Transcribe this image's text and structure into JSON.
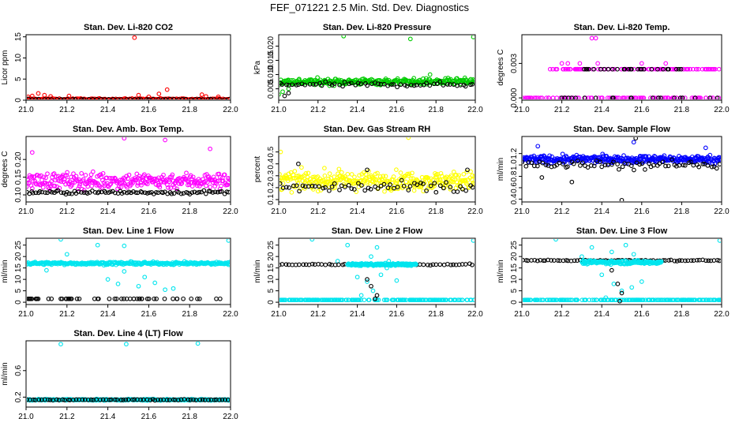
{
  "title": "FEF_071221  2.5 Min. Std. Dev. Diagnostics",
  "chart_data": [
    {
      "type": "scatter",
      "title": "Stan. Dev. Li-820 CO2",
      "ylabel": "Licor ppm",
      "xlabel": "",
      "xlim": [
        21.0,
        22.0
      ],
      "ylim": [
        0,
        15.5
      ],
      "xticks": [
        "21.0",
        "21.2",
        "21.4",
        "21.6",
        "21.8",
        "22.0"
      ],
      "yticks": [
        {
          "v": 0,
          "t": "0"
        },
        {
          "v": 5,
          "t": "5"
        },
        {
          "v": 10,
          "t": "10"
        },
        {
          "v": 15,
          "t": "15"
        }
      ],
      "series": [
        {
          "color": "#ff0000",
          "base": 0.25,
          "spread": 0.3,
          "n": 180,
          "outliers": [
            [
              21.01,
              0.8
            ],
            [
              21.03,
              1.0
            ],
            [
              21.06,
              1.6
            ],
            [
              21.09,
              1.2
            ],
            [
              21.12,
              0.9
            ],
            [
              21.21,
              1.0
            ],
            [
              21.53,
              14.8
            ],
            [
              21.55,
              1.2
            ],
            [
              21.6,
              0.8
            ],
            [
              21.65,
              1.5
            ],
            [
              21.69,
              2.5
            ],
            [
              21.86,
              1.3
            ],
            [
              21.88,
              0.9
            ],
            [
              21.94,
              0.8
            ]
          ]
        },
        {
          "color": "#000000",
          "base": 0.2,
          "spread": 0.15,
          "n": 50,
          "outliers": []
        }
      ]
    },
    {
      "type": "scatter",
      "title": "Stan. Dev. Li-820 Pressure",
      "ylabel": "kPa",
      "xlabel": "",
      "xlim": [
        21.0,
        22.0
      ],
      "ylim": [
        0.001,
        0.024
      ],
      "xticks": [
        "21.0",
        "21.2",
        "21.4",
        "21.6",
        "21.8",
        "22.0"
      ],
      "yticks": [
        {
          "v": 0.005,
          "t": "0.005"
        },
        {
          "v": 0.01,
          "t": "0.010"
        },
        {
          "v": 0.015,
          "t": "0.015"
        },
        {
          "v": 0.02,
          "t": "0.020"
        }
      ],
      "series": [
        {
          "color": "#00cc00",
          "base": 0.0075,
          "spread": 0.0022,
          "n": 300,
          "outliers": [
            [
              21.0,
              0.003
            ],
            [
              21.02,
              0.004
            ],
            [
              21.05,
              0.005
            ],
            [
              21.33,
              0.0235
            ],
            [
              21.67,
              0.0225
            ],
            [
              21.77,
              0.01
            ],
            [
              21.99,
              0.0232
            ]
          ]
        },
        {
          "color": "#000000",
          "base": 0.0065,
          "spread": 0.0016,
          "n": 60,
          "outliers": [
            [
              21.03,
              0.0025
            ],
            [
              21.05,
              0.0035
            ]
          ]
        }
      ]
    },
    {
      "type": "scatter",
      "title": "Stan. Dev. Li-820 Temp.",
      "ylabel": "degrees C",
      "xlabel": "",
      "xlim": [
        21.0,
        22.0
      ],
      "ylim": [
        -0.0002,
        0.0055
      ],
      "xticks": [
        "21.0",
        "21.2",
        "21.4",
        "21.6",
        "21.8",
        "22.0"
      ],
      "yticks": [
        {
          "v": 0,
          "t": "0.000"
        },
        {
          "v": 0.003,
          "t": "0.003"
        }
      ],
      "series": [
        {
          "color": "#ff00ff",
          "levels": [
            0,
            0.0025
          ],
          "level_ranges": [
            [
              21.0,
              22.0
            ],
            [
              21.14,
              21.99
            ]
          ],
          "n": 200,
          "outliers": [
            [
              21.2,
              0.003
            ],
            [
              21.23,
              0.003
            ],
            [
              21.29,
              0.003
            ],
            [
              21.35,
              0.0052
            ],
            [
              21.37,
              0.0052
            ],
            [
              21.38,
              0.003
            ],
            [
              21.6,
              0.003
            ],
            [
              21.72,
              0.003
            ]
          ]
        },
        {
          "color": "#000000",
          "levels": [
            0,
            0.0025
          ],
          "level_ranges": [
            [
              21.0,
              22.0
            ],
            [
              21.3,
              21.8
            ]
          ],
          "n": 50,
          "outliers": []
        }
      ]
    },
    {
      "type": "scatter",
      "title": "Stan. Dev. Amb. Box Temp.",
      "ylabel": "degrees C",
      "xlabel": "",
      "xlim": [
        21.0,
        22.0
      ],
      "ylim": [
        0.08,
        0.265
      ],
      "xticks": [
        "21.0",
        "21.2",
        "21.4",
        "21.6",
        "21.8",
        "22.0"
      ],
      "yticks": [
        {
          "v": 0.1,
          "t": "0.10"
        },
        {
          "v": 0.15,
          "t": "0.15"
        },
        {
          "v": 0.2,
          "t": "0.20"
        }
      ],
      "series": [
        {
          "color": "#ff00ff",
          "base": 0.14,
          "spread": 0.045,
          "n": 300,
          "outliers": [
            [
              21.48,
              0.26
            ],
            [
              21.68,
              0.255
            ],
            [
              21.03,
              0.22
            ],
            [
              21.9,
              0.23
            ]
          ]
        },
        {
          "color": "#000000",
          "base": 0.107,
          "spread": 0.01,
          "n": 90,
          "outliers": []
        }
      ]
    },
    {
      "type": "scatter",
      "title": "Stan. Dev. Gas Stream RH",
      "ylabel": "percent",
      "xlabel": "",
      "xlim": [
        21.0,
        22.0
      ],
      "ylim": [
        0.08,
        0.63
      ],
      "xticks": [
        "21.0",
        "21.2",
        "21.4",
        "21.6",
        "21.8",
        "22.0"
      ],
      "yticks": [
        {
          "v": 0.1,
          "t": "0.1"
        },
        {
          "v": 0.2,
          "t": "0.2"
        },
        {
          "v": 0.3,
          "t": "0.3"
        },
        {
          "v": 0.4,
          "t": "0.4"
        },
        {
          "v": 0.5,
          "t": "0.5"
        }
      ],
      "series": [
        {
          "color": "#ffff00",
          "base": 0.26,
          "spread": 0.15,
          "n": 320,
          "outliers": [
            [
              21.66,
              0.62
            ],
            [
              21.01,
              0.5
            ]
          ]
        },
        {
          "color": "#000000",
          "base": 0.2,
          "spread": 0.1,
          "n": 60,
          "outliers": [
            [
              21.1,
              0.4
            ],
            [
              21.45,
              0.35
            ],
            [
              21.96,
              0.35
            ]
          ]
        }
      ]
    },
    {
      "type": "scatter",
      "title": "Stan. Dev. Sample Flow",
      "ylabel": "ml/min",
      "xlabel": "",
      "xlim": [
        21.0,
        22.0
      ],
      "ylim": [
        0.35,
        1.5
      ],
      "xticks": [
        "21.0",
        "21.2",
        "21.4",
        "21.6",
        "21.8",
        "22.0"
      ],
      "yticks": [
        {
          "v": 0.4,
          "t": "0.4"
        },
        {
          "v": 0.6,
          "t": "0.6"
        },
        {
          "v": 0.8,
          "t": "0.8"
        },
        {
          "v": 1.0,
          "t": "1.0"
        },
        {
          "v": 1.2,
          "t": "1.2"
        }
      ],
      "series": [
        {
          "color": "#0000ff",
          "base": 1.1,
          "spread": 0.13,
          "n": 340,
          "outliers": [
            [
              21.08,
              1.33
            ],
            [
              21.56,
              1.4
            ],
            [
              21.92,
              1.3
            ]
          ]
        },
        {
          "color": "#000000",
          "base": 1.0,
          "spread": 0.16,
          "n": 70,
          "outliers": [
            [
              21.5,
              0.38
            ],
            [
              21.57,
              1.47
            ],
            [
              21.1,
              0.78
            ],
            [
              21.25,
              0.7
            ]
          ]
        }
      ]
    },
    {
      "type": "scatter",
      "title": "Stan. Dev. Line 1 Flow",
      "ylabel": "ml/min",
      "xlabel": "",
      "xlim": [
        21.0,
        22.0
      ],
      "ylim": [
        -1,
        28
      ],
      "xticks": [
        "21.0",
        "21.2",
        "21.4",
        "21.6",
        "21.8",
        "22.0"
      ],
      "yticks": [
        {
          "v": 0,
          "t": "0"
        },
        {
          "v": 5,
          "t": "5"
        },
        {
          "v": 10,
          "t": "10"
        },
        {
          "v": 15,
          "t": "15"
        },
        {
          "v": 20,
          "t": "20"
        },
        {
          "v": 25,
          "t": "25"
        }
      ],
      "series": [
        {
          "color": "#00e5ee",
          "base": 17,
          "spread": 1.2,
          "n": 300,
          "outliers": [
            [
              21.17,
              27.5
            ],
            [
              21.99,
              27
            ],
            [
              21.35,
              25
            ],
            [
              21.48,
              24.7
            ],
            [
              21.2,
              21
            ],
            [
              21.4,
              10
            ],
            [
              21.45,
              8
            ],
            [
              21.55,
              7
            ],
            [
              21.63,
              8.5
            ],
            [
              21.68,
              5.5
            ],
            [
              21.72,
              6
            ],
            [
              21.58,
              11
            ],
            [
              21.48,
              13.5
            ],
            [
              21.1,
              14
            ]
          ]
        },
        {
          "color": "#000000",
          "levels": [
            1.5
          ],
          "level_ranges": [
            [
              21.0,
              22.0
            ]
          ],
          "n": 55,
          "outliers": []
        }
      ]
    },
    {
      "type": "scatter",
      "title": "Stan. Dev. Line 2 Flow",
      "ylabel": "ml/min",
      "xlabel": "",
      "xlim": [
        21.0,
        22.0
      ],
      "ylim": [
        -1,
        28
      ],
      "xticks": [
        "21.0",
        "21.2",
        "21.4",
        "21.6",
        "21.8",
        "22.0"
      ],
      "yticks": [
        {
          "v": 0,
          "t": "0"
        },
        {
          "v": 5,
          "t": "5"
        },
        {
          "v": 10,
          "t": "10"
        },
        {
          "v": 15,
          "t": "15"
        },
        {
          "v": 20,
          "t": "20"
        },
        {
          "v": 25,
          "t": "25"
        }
      ],
      "series": [
        {
          "color": "#00e5ee",
          "levels": [
            1.0
          ],
          "level_ranges": [
            [
              21.0,
              22.0
            ]
          ],
          "n": 200,
          "outliers": [
            [
              21.17,
              27.5
            ],
            [
              21.99,
              27
            ],
            [
              21.35,
              25
            ],
            [
              21.5,
              24
            ],
            [
              21.4,
              11
            ],
            [
              21.45,
              9
            ],
            [
              21.48,
              5
            ],
            [
              21.52,
              12
            ],
            [
              21.55,
              15
            ],
            [
              21.42,
              3
            ],
            [
              21.6,
              9.5
            ],
            [
              21.47,
              20
            ],
            [
              21.3,
              18
            ],
            [
              21.56,
              18
            ]
          ]
        },
        {
          "color": "#000000",
          "base": 16.5,
          "spread": 0.6,
          "n": 60,
          "outliers": [
            [
              21.45,
              10
            ],
            [
              21.47,
              7
            ],
            [
              21.5,
              3
            ],
            [
              21.49,
              1.5
            ]
          ]
        },
        {
          "color": "#00e5ee",
          "base": 16.5,
          "spread": 1.0,
          "n": 150,
          "range": [
            21.35,
            21.7
          ],
          "outliers": []
        }
      ]
    },
    {
      "type": "scatter",
      "title": "Stan. Dev. Line 3 Flow",
      "ylabel": "ml/min",
      "xlabel": "",
      "xlim": [
        21.0,
        22.0
      ],
      "ylim": [
        -1,
        28
      ],
      "xticks": [
        "21.0",
        "21.2",
        "21.4",
        "21.6",
        "21.8",
        "22.0"
      ],
      "yticks": [
        {
          "v": 0,
          "t": "0"
        },
        {
          "v": 5,
          "t": "5"
        },
        {
          "v": 10,
          "t": "10"
        },
        {
          "v": 15,
          "t": "15"
        },
        {
          "v": 20,
          "t": "20"
        },
        {
          "v": 25,
          "t": "25"
        }
      ],
      "series": [
        {
          "color": "#00e5ee",
          "levels": [
            1.0
          ],
          "level_ranges": [
            [
              21.0,
              22.0
            ]
          ],
          "n": 200,
          "outliers": [
            [
              21.17,
              27.5
            ],
            [
              21.99,
              27
            ],
            [
              21.35,
              24
            ],
            [
              21.45,
              22
            ],
            [
              21.52,
              25
            ],
            [
              21.4,
              12
            ],
            [
              21.46,
              8
            ],
            [
              21.5,
              5
            ],
            [
              21.55,
              6.5
            ],
            [
              21.42,
              2
            ],
            [
              21.6,
              9
            ],
            [
              21.3,
              20
            ],
            [
              21.56,
              21
            ]
          ]
        },
        {
          "color": "#000000",
          "base": 18.3,
          "spread": 0.5,
          "n": 70,
          "outliers": [
            [
              21.45,
              14
            ],
            [
              21.48,
              8
            ],
            [
              21.5,
              4
            ],
            [
              21.49,
              0.5
            ]
          ]
        },
        {
          "color": "#00e5ee",
          "base": 17.5,
          "spread": 1.5,
          "n": 150,
          "range": [
            21.3,
            21.7
          ],
          "outliers": []
        }
      ]
    },
    {
      "type": "scatter",
      "title": "Stan. Dev. Line 4 (LT) Flow",
      "ylabel": "ml/min",
      "xlabel": "",
      "xlim": [
        21.0,
        22.0
      ],
      "ylim": [
        0.05,
        1.05
      ],
      "xticks": [
        "21.0",
        "21.2",
        "21.4",
        "21.6",
        "21.8",
        "22.0"
      ],
      "yticks": [
        {
          "v": 0.2,
          "t": "0.2"
        },
        {
          "v": 0.6,
          "t": "0.6"
        }
      ],
      "series": [
        {
          "color": "#00e5ee",
          "base": 0.16,
          "spread": 0.02,
          "n": 320,
          "outliers": [
            [
              21.17,
              1.0
            ],
            [
              21.49,
              1.0
            ],
            [
              21.84,
              1.01
            ]
          ]
        },
        {
          "color": "#000000",
          "base": 0.16,
          "spread": 0.012,
          "n": 70,
          "outliers": []
        }
      ]
    }
  ]
}
